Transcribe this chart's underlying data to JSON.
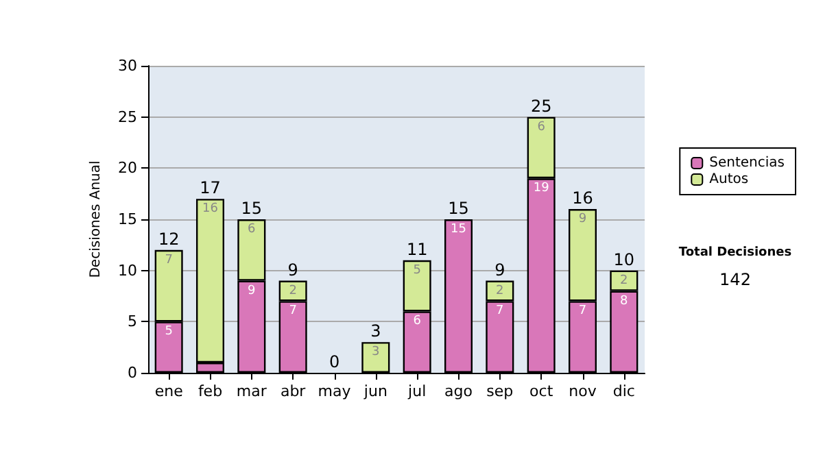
{
  "chart_data": {
    "type": "bar",
    "stacked": true,
    "ylabel": "Decisiones Anual",
    "categories": [
      "ene",
      "feb",
      "mar",
      "abr",
      "may",
      "jun",
      "jul",
      "ago",
      "sep",
      "oct",
      "nov",
      "dic"
    ],
    "series": [
      {
        "name": "Sentencias",
        "color": "#d977b9",
        "values": [
          5,
          1,
          9,
          7,
          0,
          0,
          6,
          15,
          7,
          19,
          7,
          8
        ],
        "value_labels": [
          "5",
          null,
          "9",
          "7",
          null,
          null,
          "6",
          "15",
          "7",
          "19",
          "7",
          "8"
        ]
      },
      {
        "name": "Autos",
        "color": "#d4ea97",
        "values": [
          7,
          16,
          6,
          2,
          0,
          3,
          5,
          0,
          2,
          6,
          9,
          2
        ],
        "value_labels": [
          "7",
          "16",
          "6",
          "2",
          null,
          "3",
          "5",
          null,
          "2",
          "6",
          "9",
          "2"
        ]
      }
    ],
    "totals": [
      "12",
      "17",
      "15",
      "9",
      "0",
      "3",
      "11",
      "15",
      "9",
      "25",
      "16",
      "10"
    ],
    "ylim": [
      0,
      30
    ],
    "yticks": [
      0,
      5,
      10,
      15,
      20,
      25,
      30
    ],
    "grid": "y",
    "legend": "right",
    "annotations": [
      "Total Decisiones",
      "142"
    ]
  }
}
